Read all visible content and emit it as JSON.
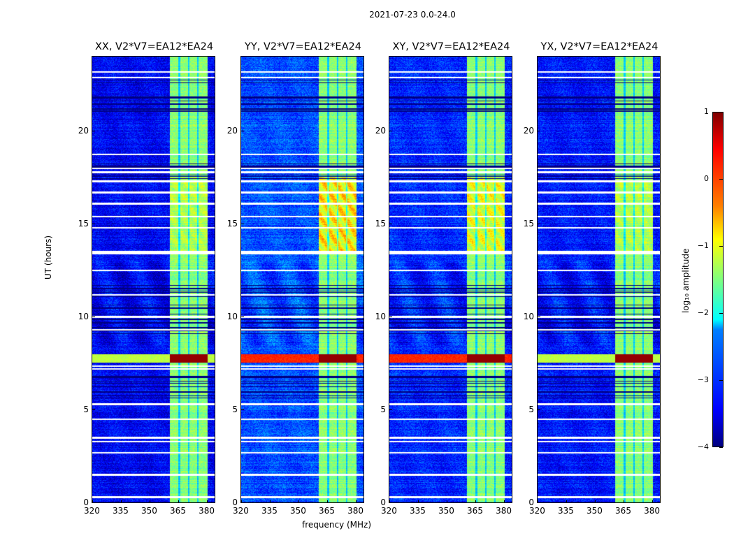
{
  "suptitle": "2021-07-23 0.0-24.0",
  "chart_data": {
    "type": "heatmap",
    "panels": [
      {
        "title": "XX, V2*V7=EA12*EA24",
        "band_boost_13_17h": 0.3,
        "event_outside_band": -1.2,
        "background": -3.4
      },
      {
        "title": "YY, V2*V7=EA12*EA24",
        "band_boost_13_17h": 1.0,
        "event_outside_band": 0.2,
        "background": -3.0
      },
      {
        "title": "XY, V2*V7=EA12*EA24",
        "band_boost_13_17h": 0.7,
        "event_outside_band": 0.2,
        "background": -3.2
      },
      {
        "title": "YX, V2*V7=EA12*EA24",
        "band_boost_13_17h": 0.3,
        "event_outside_band": -1.2,
        "background": -3.3
      }
    ],
    "xlabel": "frequency (MHz)",
    "ylabel": "UT (hours)",
    "xlim": [
      320,
      384
    ],
    "ylim": [
      0,
      24
    ],
    "xticks": [
      "320",
      "335",
      "350",
      "365",
      "380"
    ],
    "yticks": [
      "0",
      "5",
      "10",
      "15",
      "20"
    ],
    "bright_band_mhz": [
      360.7,
      380.4
    ],
    "band_gaps_mhz": [
      365.5,
      370.5,
      375.3
    ],
    "event_hours": [
      7.55,
      8.0
    ],
    "flagged_hours": [
      0.3,
      1.5,
      2.7,
      3.3,
      3.5,
      4.5,
      5.3,
      7.35,
      7.2,
      9.3,
      10.0,
      11.2,
      12.5,
      13.4,
      13.5,
      14.8,
      15.4,
      16.1,
      16.7,
      17.3,
      17.8,
      18.0,
      18.75,
      22.9,
      23.2
    ],
    "colorbar": {
      "label": "log₁₀ amplitude",
      "range": [
        -4,
        1
      ],
      "ticks": [
        "1",
        "0",
        "−1",
        "−2",
        "−3",
        "−4"
      ],
      "colormap": "jet"
    }
  }
}
